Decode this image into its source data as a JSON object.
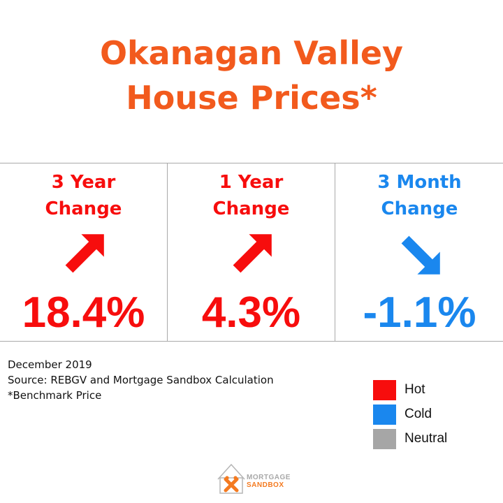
{
  "title": {
    "line1": "Okanagan Valley",
    "line2": "House Prices*",
    "color": "#f25a1d"
  },
  "cards": [
    {
      "label_line1": "3 Year",
      "label_line2": "Change",
      "direction": "up",
      "status": "hot",
      "value": "18.4%",
      "icon": "arrow-up-right-icon"
    },
    {
      "label_line1": "1 Year",
      "label_line2": "Change",
      "direction": "up",
      "status": "hot",
      "value": "4.3%",
      "icon": "arrow-up-right-icon"
    },
    {
      "label_line1": "3 Month",
      "label_line2": "Change",
      "direction": "down",
      "status": "cold",
      "value": "-1.1%",
      "icon": "arrow-down-right-icon"
    }
  ],
  "notes": {
    "date": "December 2019",
    "source": "Source: REBGV and Mortgage Sandbox Calculation",
    "footnote": "*Benchmark Price"
  },
  "legend": [
    {
      "label": "Hot",
      "color": "#f70d0d"
    },
    {
      "label": "Cold",
      "color": "#1a87ee"
    },
    {
      "label": "Neutral",
      "color": "#a6a6a6"
    }
  ],
  "logo": {
    "line1": "MORTGAGE",
    "line2": "SANDBOX"
  }
}
